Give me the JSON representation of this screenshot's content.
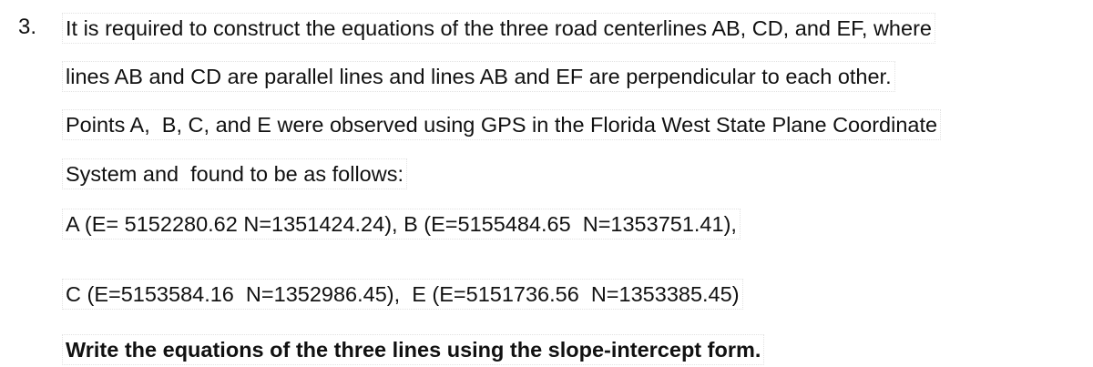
{
  "problem": {
    "number": "3.",
    "lines": [
      "It is required to construct the equations of the three road centerlines AB, CD, and EF, where",
      "lines AB and CD are parallel lines and lines AB and EF are perpendicular to each other.",
      "Points A,  B, C, and E were observed using GPS in the Florida West State Plane Coordinate",
      "System and  found to be as follows:"
    ],
    "coordinates": [
      "A (E= 5152280.62 N=1351424.24), B (E=5155484.65  N=1353751.41),",
      "C (E=5153584.16  N=1352986.45),  E (E=5151736.56  N=1353385.45)"
    ],
    "instruction": "Write the equations of the three lines using the slope-intercept form."
  }
}
